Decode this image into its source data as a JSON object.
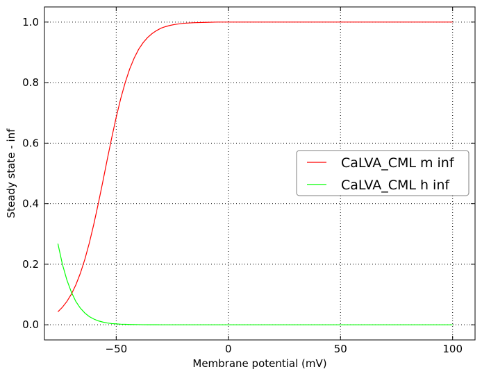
{
  "chart_data": {
    "type": "line",
    "xlabel": "Membrane potential (mV)",
    "ylabel": "Steady state - inf",
    "xlim": [
      -82,
      110
    ],
    "ylim": [
      -0.05,
      1.05
    ],
    "x_ticks": [
      -50,
      0,
      50,
      100
    ],
    "x_tick_labels": [
      "−50",
      "0",
      "50",
      "100"
    ],
    "y_ticks": [
      0.0,
      0.2,
      0.4,
      0.6,
      0.8,
      1.0
    ],
    "y_tick_labels": [
      "0.0",
      "0.2",
      "0.4",
      "0.6",
      "0.8",
      "1.0"
    ],
    "grid": true,
    "legend_position": "center-right",
    "x": [
      -76,
      -74,
      -72,
      -70,
      -68,
      -66,
      -64,
      -62,
      -60,
      -58,
      -56,
      -54,
      -52,
      -50,
      -48,
      -46,
      -44,
      -42,
      -40,
      -38,
      -36,
      -34,
      -32,
      -30,
      -28,
      -26,
      -24,
      -22,
      -20,
      -15,
      -10,
      -5,
      0,
      10,
      20,
      30,
      40,
      50,
      60,
      70,
      80,
      90,
      100
    ],
    "series": [
      {
        "name": "CaLVA_CML m inf",
        "color": "#ff0000",
        "values": [
          0.043,
          0.058,
          0.077,
          0.101,
          0.132,
          0.17,
          0.216,
          0.27,
          0.332,
          0.4,
          0.472,
          0.546,
          0.618,
          0.686,
          0.747,
          0.8,
          0.845,
          0.881,
          0.91,
          0.932,
          0.949,
          0.962,
          0.972,
          0.98,
          0.985,
          0.989,
          0.992,
          0.994,
          0.996,
          0.998,
          0.999,
          1.0,
          1.0,
          1.0,
          1.0,
          1.0,
          1.0,
          1.0,
          1.0,
          1.0,
          1.0,
          1.0,
          1.0
        ]
      },
      {
        "name": "CaLVA_CML h inf",
        "color": "#00ff00",
        "values": [
          0.268,
          0.2,
          0.148,
          0.108,
          0.077,
          0.055,
          0.039,
          0.027,
          0.019,
          0.013,
          0.009,
          0.006,
          0.004,
          0.003,
          0.002,
          0.0015,
          0.001,
          0.0007,
          0.0005,
          0.0003,
          0.0002,
          0.0001,
          0.0001,
          0.0,
          0.0,
          0.0,
          0.0,
          0.0,
          0.0,
          0.0,
          0.0,
          0.0,
          0.0,
          0.0,
          0.0,
          0.0,
          0.0,
          0.0,
          0.0,
          0.0,
          0.0,
          0.0,
          0.0
        ]
      }
    ]
  }
}
